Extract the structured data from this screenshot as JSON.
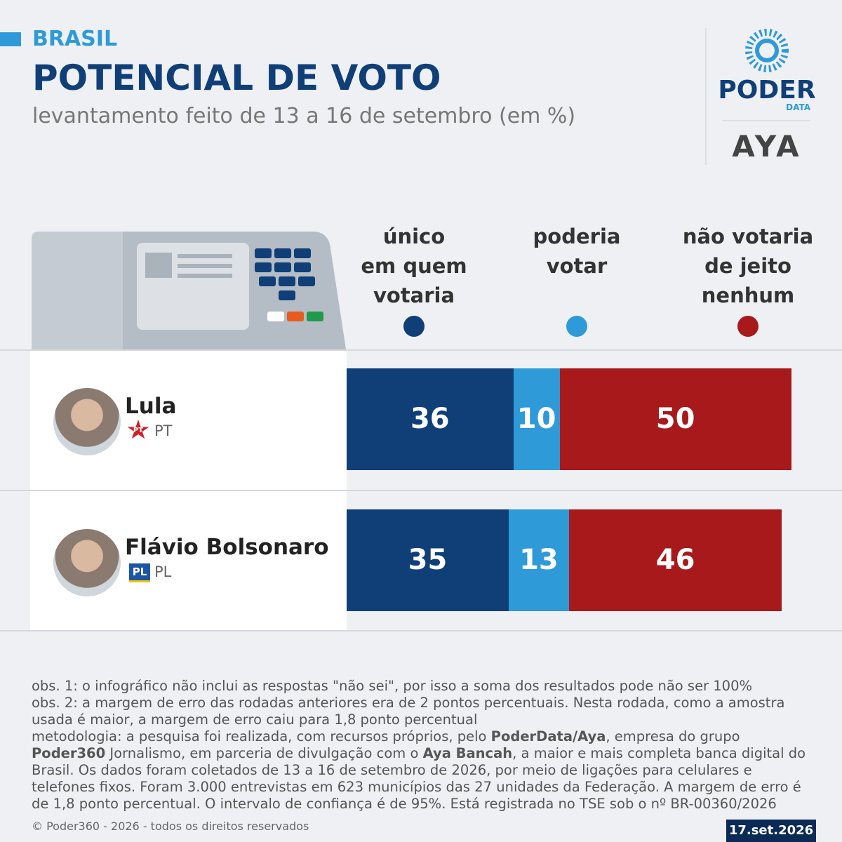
{
  "header": {
    "section": "BRASIL",
    "title": "POTENCIAL DE VOTO",
    "subtitle": "levantamento feito de 13 a 16 de setembro (em %)"
  },
  "logos": {
    "poder": "PODER",
    "data": "DATA",
    "aya": "AYA"
  },
  "chart_data": {
    "type": "stacked-bar-horizontal",
    "categories": [
      "Lula",
      "Flávio Bolsonaro"
    ],
    "parties": [
      "PT",
      "PL"
    ],
    "series": [
      {
        "name": "único\nem quem\nvotaria",
        "color": "#103f78",
        "values": [
          36,
          35
        ]
      },
      {
        "name": "poderia\nvotar",
        "color": "#2f9ad8",
        "values": [
          10,
          13
        ]
      },
      {
        "name": "não votaria\nde jeito\nnenhum",
        "color": "#a8191b",
        "values": [
          50,
          46
        ]
      }
    ]
  },
  "notes": {
    "obs": [
      "obs. 1: o infográfico não inclui as respostas \"não sei\", por isso a soma dos resultados pode não ser 100%",
      "obs. 2: a margem de erro das rodadas anteriores era de 2 pontos percentuais. Nesta rodada, como a amostra usada é maior, a margem de erro caiu para 1,8 ponto percentual"
    ],
    "methodology": [
      "metodologia: a pesquisa foi realizada, com recursos próprios, pelo ",
      "PoderData/Aya",
      ", empresa do grupo ",
      "Poder360",
      " Jornalismo, em parceria de divulgação com o ",
      "Aya Bancah",
      ", a maior e mais completa banca digital do Brasil. Os dados foram coletados de 13 a 16 de setembro de 2026, por meio de ligações para celulares e telefones fixos. Foram 3.000 entrevistas em 623 municípios das 27 unidades da Federação. A margem de erro é de 1,8 ponto percentual. O intervalo de confiança é de 95%. Está registrada no TSE sob o nº BR-00360/2026"
    ]
  },
  "footer": {
    "copyright": "© Poder360 - 2026 - todos os direitos reservados",
    "date": "17.set.2026"
  }
}
